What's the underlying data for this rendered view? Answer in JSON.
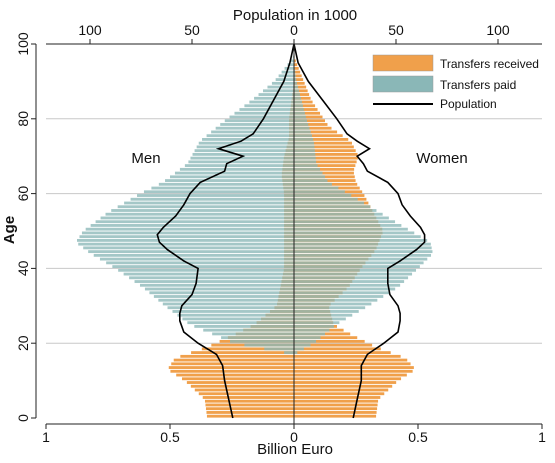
{
  "chart_data": {
    "type": "population-pyramid",
    "top_axis_title": "Population in 1000",
    "top_ticks": [
      {
        "value": 100,
        "label": "100"
      },
      {
        "value": 50,
        "label": "50"
      },
      {
        "value": 0,
        "label": "0"
      },
      {
        "value": 50,
        "label": "50"
      },
      {
        "value": 100,
        "label": "100"
      }
    ],
    "bottom_axis_title": "Billion Euro",
    "bottom_ticks": [
      "1",
      "0.5",
      "0",
      "0.5",
      "1"
    ],
    "y_axis_title": "Age",
    "y_ticks": [
      "0",
      "20",
      "40",
      "60",
      "80",
      "100"
    ],
    "grid": true,
    "legend_position": "top-right",
    "legend": [
      {
        "key": "received",
        "label": "Transfers received",
        "color": "#f0a04b"
      },
      {
        "key": "paid",
        "label": "Transfers paid",
        "color": "#8ab7b7"
      },
      {
        "key": "population",
        "label": "Population",
        "color": "#000000"
      }
    ],
    "annotations": {
      "men": "Men",
      "women": "Women"
    },
    "units": {
      "transfers": "billion euro",
      "population": "thousands"
    },
    "profiles": {
      "received_men": [
        [
          0,
          0.35
        ],
        [
          5,
          0.36
        ],
        [
          10,
          0.44
        ],
        [
          13,
          0.51
        ],
        [
          16,
          0.48
        ],
        [
          19,
          0.35
        ],
        [
          22,
          0.25
        ],
        [
          25,
          0.16
        ],
        [
          30,
          0.07
        ],
        [
          40,
          0.04
        ],
        [
          50,
          0.04
        ],
        [
          60,
          0.04
        ],
        [
          65,
          0.05
        ],
        [
          70,
          0.04
        ],
        [
          75,
          0.02
        ],
        [
          80,
          0.02
        ],
        [
          85,
          0.01
        ],
        [
          90,
          0.0
        ]
      ],
      "received_women": [
        [
          0,
          0.33
        ],
        [
          5,
          0.34
        ],
        [
          10,
          0.42
        ],
        [
          13,
          0.49
        ],
        [
          16,
          0.45
        ],
        [
          19,
          0.33
        ],
        [
          22,
          0.24
        ],
        [
          25,
          0.16
        ],
        [
          30,
          0.14
        ],
        [
          35,
          0.22
        ],
        [
          40,
          0.27
        ],
        [
          45,
          0.33
        ],
        [
          50,
          0.36
        ],
        [
          55,
          0.32
        ],
        [
          60,
          0.28
        ],
        [
          63,
          0.25
        ],
        [
          66,
          0.24
        ],
        [
          70,
          0.26
        ],
        [
          74,
          0.23
        ],
        [
          78,
          0.14
        ],
        [
          85,
          0.07
        ],
        [
          90,
          0.04
        ],
        [
          95,
          0.01
        ],
        [
          97,
          0.0
        ]
      ],
      "paid_men": [
        [
          17,
          0.0
        ],
        [
          20,
          0.24
        ],
        [
          25,
          0.42
        ],
        [
          30,
          0.52
        ],
        [
          35,
          0.61
        ],
        [
          40,
          0.72
        ],
        [
          44,
          0.82
        ],
        [
          47,
          0.88
        ],
        [
          50,
          0.85
        ],
        [
          55,
          0.75
        ],
        [
          60,
          0.62
        ],
        [
          63,
          0.53
        ],
        [
          68,
          0.43
        ],
        [
          74,
          0.38
        ],
        [
          80,
          0.27
        ],
        [
          85,
          0.17
        ],
        [
          90,
          0.08
        ],
        [
          95,
          0.02
        ],
        [
          97,
          0.0
        ]
      ],
      "paid_women": [
        [
          17,
          0.0
        ],
        [
          20,
          0.08
        ],
        [
          25,
          0.17
        ],
        [
          30,
          0.3
        ],
        [
          35,
          0.42
        ],
        [
          40,
          0.5
        ],
        [
          44,
          0.56
        ],
        [
          47,
          0.55
        ],
        [
          52,
          0.42
        ],
        [
          58,
          0.27
        ],
        [
          63,
          0.14
        ],
        [
          68,
          0.09
        ],
        [
          74,
          0.08
        ],
        [
          80,
          0.05
        ],
        [
          85,
          0.03
        ],
        [
          90,
          0.01
        ],
        [
          95,
          0.0
        ]
      ],
      "population_men": [
        [
          0,
          30
        ],
        [
          5,
          32
        ],
        [
          10,
          34
        ],
        [
          14,
          35
        ],
        [
          17,
          38
        ],
        [
          20,
          47
        ],
        [
          23,
          54
        ],
        [
          26,
          56
        ],
        [
          28,
          56
        ],
        [
          30,
          55
        ],
        [
          33,
          50
        ],
        [
          36,
          48
        ],
        [
          40,
          47
        ],
        [
          42,
          54
        ],
        [
          45,
          62
        ],
        [
          47,
          66
        ],
        [
          49,
          67
        ],
        [
          51,
          64
        ],
        [
          54,
          58
        ],
        [
          57,
          54
        ],
        [
          60,
          51
        ],
        [
          63,
          46
        ],
        [
          66,
          34
        ],
        [
          68,
          33
        ],
        [
          70,
          25
        ],
        [
          72,
          37
        ],
        [
          74,
          26
        ],
        [
          76,
          20
        ],
        [
          80,
          15
        ],
        [
          85,
          10
        ],
        [
          90,
          5
        ],
        [
          95,
          2
        ],
        [
          100,
          0
        ]
      ],
      "population_women": [
        [
          0,
          29
        ],
        [
          5,
          31
        ],
        [
          10,
          33
        ],
        [
          14,
          33
        ],
        [
          17,
          36
        ],
        [
          20,
          44
        ],
        [
          23,
          51
        ],
        [
          26,
          52
        ],
        [
          28,
          52
        ],
        [
          30,
          51
        ],
        [
          33,
          47
        ],
        [
          36,
          46
        ],
        [
          40,
          46
        ],
        [
          42,
          52
        ],
        [
          45,
          60
        ],
        [
          47,
          64
        ],
        [
          49,
          64
        ],
        [
          51,
          62
        ],
        [
          54,
          57
        ],
        [
          57,
          53
        ],
        [
          60,
          51
        ],
        [
          63,
          46
        ],
        [
          66,
          36
        ],
        [
          68,
          34
        ],
        [
          70,
          31
        ],
        [
          72,
          37
        ],
        [
          74,
          31
        ],
        [
          76,
          26
        ],
        [
          80,
          21
        ],
        [
          85,
          14
        ],
        [
          90,
          7
        ],
        [
          95,
          2
        ],
        [
          100,
          0
        ]
      ]
    }
  }
}
